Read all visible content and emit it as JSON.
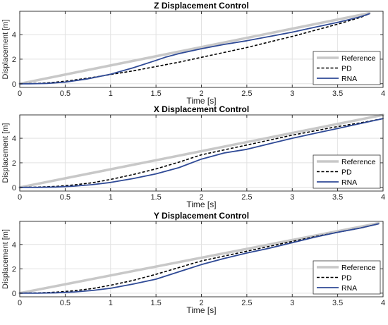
{
  "colors": {
    "reference": "#c8c8c8",
    "pd": "#000000",
    "rna": "#2f4a96",
    "grid": "#e2e2e2",
    "axis": "#262626"
  },
  "chart_data": [
    {
      "type": "line",
      "title": "Z Displacement Control",
      "xlabel": "Time [s]",
      "ylabel": "Displacement [m]",
      "xlim": [
        0,
        4
      ],
      "ylim": [
        -0.3,
        5.9
      ],
      "xticks": [
        0,
        0.5,
        1,
        1.5,
        2,
        2.5,
        3,
        3.5,
        4
      ],
      "xtick_labels": [
        "0",
        "0.5",
        "1",
        "1.5",
        "2",
        "2.5",
        "3",
        "3.5",
        "4"
      ],
      "yticks": [
        0,
        2,
        4
      ],
      "ytick_labels": [
        "0",
        "2",
        "4"
      ],
      "grid": true,
      "legend": {
        "placement": "lower-right",
        "entries": [
          "Reference",
          "PD",
          "RNA"
        ]
      },
      "series": [
        {
          "name": "Reference",
          "style": "solid",
          "x": [
            0,
            3.85
          ],
          "y": [
            0,
            5.75
          ]
        },
        {
          "name": "PD",
          "style": "dashed",
          "x": [
            0,
            0.1,
            0.2,
            0.3,
            0.5,
            0.75,
            1.0,
            1.25,
            1.5,
            1.75,
            2.0,
            2.25,
            2.5,
            2.75,
            3.0,
            3.25,
            3.5,
            3.75,
            3.85
          ],
          "y": [
            0,
            0.01,
            0.03,
            0.07,
            0.2,
            0.45,
            0.75,
            1.05,
            1.4,
            1.75,
            2.15,
            2.55,
            2.95,
            3.4,
            3.85,
            4.35,
            4.85,
            5.4,
            5.7
          ]
        },
        {
          "name": "RNA",
          "style": "solid",
          "x": [
            0,
            0.1,
            0.2,
            0.3,
            0.5,
            0.75,
            1.0,
            1.25,
            1.5,
            1.6,
            1.75,
            2.0,
            2.25,
            2.5,
            2.75,
            3.0,
            3.25,
            3.5,
            3.75,
            3.85
          ],
          "y": [
            0,
            0.0,
            0.01,
            0.03,
            0.13,
            0.4,
            0.78,
            1.3,
            1.9,
            2.15,
            2.45,
            2.85,
            3.2,
            3.5,
            3.85,
            4.2,
            4.6,
            5.0,
            5.45,
            5.7
          ]
        }
      ]
    },
    {
      "type": "line",
      "title": "X Displacement Control",
      "xlabel": "Time [s]",
      "ylabel": "Displacement [m]",
      "xlim": [
        0,
        4
      ],
      "ylim": [
        -0.3,
        5.9
      ],
      "xticks": [
        0,
        0.5,
        1,
        1.5,
        2,
        2.5,
        3,
        3.5,
        4
      ],
      "xtick_labels": [
        "0",
        "0.5",
        "1",
        "1.5",
        "2",
        "2.5",
        "3",
        "3.5",
        "4"
      ],
      "yticks": [
        0,
        2,
        4
      ],
      "ytick_labels": [
        "0",
        "2",
        "4"
      ],
      "grid": true,
      "legend": {
        "placement": "lower-right",
        "entries": [
          "Reference",
          "PD",
          "RNA"
        ]
      },
      "series": [
        {
          "name": "Reference",
          "style": "solid",
          "x": [
            0,
            4.0
          ],
          "y": [
            0,
            5.9
          ]
        },
        {
          "name": "PD",
          "style": "dashed",
          "x": [
            0,
            0.2,
            0.4,
            0.6,
            0.8,
            1.0,
            1.25,
            1.5,
            1.75,
            2.0,
            2.25,
            2.5,
            2.75,
            3.0,
            3.25,
            3.5,
            3.75,
            4.0
          ],
          "y": [
            0,
            0.02,
            0.08,
            0.2,
            0.38,
            0.65,
            1.05,
            1.5,
            2.05,
            2.65,
            3.05,
            3.45,
            3.85,
            4.25,
            4.6,
            4.95,
            5.25,
            5.6
          ]
        },
        {
          "name": "RNA",
          "style": "solid",
          "x": [
            0,
            0.2,
            0.4,
            0.6,
            0.8,
            1.0,
            1.25,
            1.5,
            1.75,
            2.0,
            2.25,
            2.5,
            2.75,
            3.0,
            3.25,
            3.5,
            3.75,
            4.0
          ],
          "y": [
            0,
            0.0,
            0.03,
            0.1,
            0.22,
            0.4,
            0.72,
            1.1,
            1.6,
            2.3,
            2.8,
            3.1,
            3.55,
            4.0,
            4.4,
            4.8,
            5.2,
            5.6
          ]
        }
      ]
    },
    {
      "type": "line",
      "title": "Y Displacement Control",
      "xlabel": "Time [s]",
      "ylabel": "Displacement [m]",
      "xlim": [
        0,
        4
      ],
      "ylim": [
        -0.3,
        5.9
      ],
      "xticks": [
        0,
        0.5,
        1,
        1.5,
        2,
        2.5,
        3,
        3.5,
        4
      ],
      "xtick_labels": [
        "0",
        "0.5",
        "1",
        "1.5",
        "2",
        "2.5",
        "3",
        "3.5",
        "4"
      ],
      "yticks": [
        0,
        2,
        4
      ],
      "ytick_labels": [
        "0",
        "2",
        "4"
      ],
      "grid": true,
      "legend": {
        "placement": "lower-right",
        "entries": [
          "Reference",
          "PD",
          "RNA"
        ]
      },
      "series": [
        {
          "name": "Reference",
          "style": "solid",
          "x": [
            0,
            3.95
          ],
          "y": [
            0,
            5.75
          ]
        },
        {
          "name": "PD",
          "style": "dashed",
          "x": [
            0,
            0.2,
            0.4,
            0.6,
            0.8,
            1.0,
            1.25,
            1.5,
            1.75,
            2.0,
            2.25,
            2.5,
            2.75,
            3.0,
            3.25,
            3.5,
            3.75,
            3.95
          ],
          "y": [
            0,
            0.02,
            0.08,
            0.2,
            0.38,
            0.65,
            1.05,
            1.55,
            2.1,
            2.65,
            3.05,
            3.45,
            3.85,
            4.25,
            4.65,
            5.0,
            5.35,
            5.7
          ]
        },
        {
          "name": "RNA",
          "style": "solid",
          "x": [
            0,
            0.2,
            0.4,
            0.6,
            0.8,
            1.0,
            1.25,
            1.5,
            1.75,
            2.0,
            2.25,
            2.5,
            2.75,
            3.0,
            3.25,
            3.5,
            3.75,
            3.95
          ],
          "y": [
            0,
            0.0,
            0.03,
            0.1,
            0.22,
            0.4,
            0.75,
            1.15,
            1.75,
            2.35,
            2.85,
            3.3,
            3.7,
            4.15,
            4.6,
            5.0,
            5.35,
            5.7
          ]
        }
      ]
    }
  ]
}
